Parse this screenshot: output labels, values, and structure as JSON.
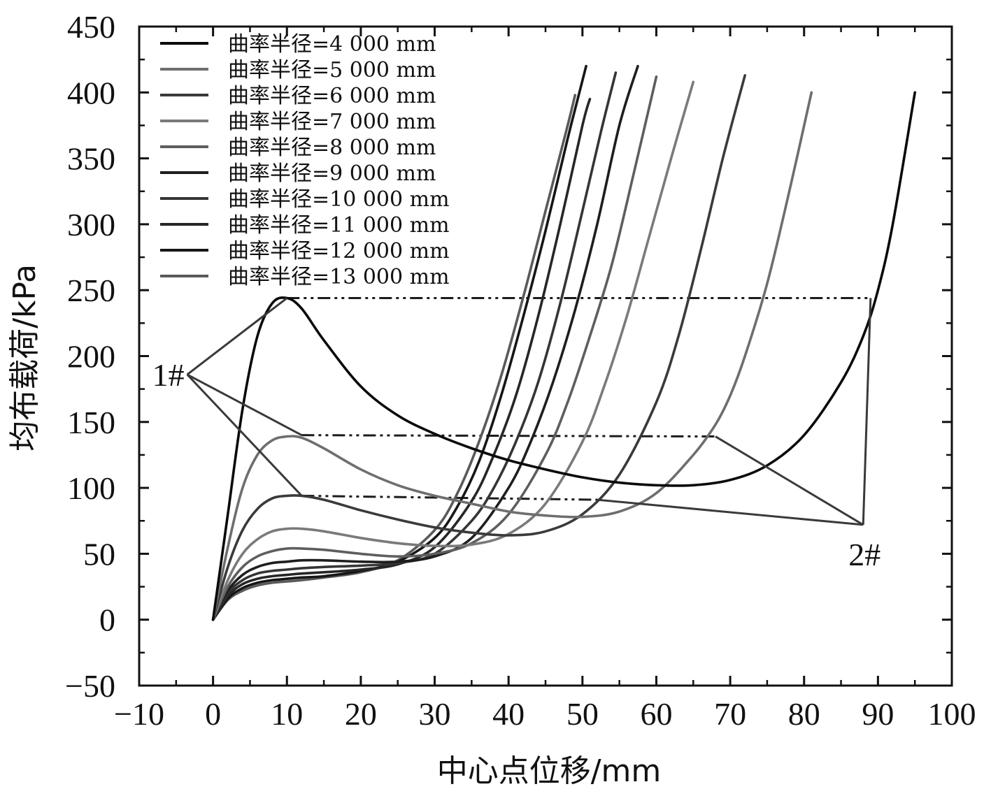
{
  "chart_data": {
    "type": "line",
    "title": "",
    "xlabel": "中心点位移/mm",
    "ylabel": "均布载荷/kPa",
    "xlim": [
      -10,
      100
    ],
    "ylim": [
      -50,
      450
    ],
    "xticks": [
      -10,
      0,
      10,
      20,
      30,
      40,
      50,
      60,
      70,
      80,
      90,
      100
    ],
    "yticks": [
      -50,
      0,
      50,
      100,
      150,
      200,
      250,
      300,
      350,
      400,
      450
    ],
    "xtick_labels": [
      "−10",
      "0",
      "10",
      "20",
      "30",
      "40",
      "50",
      "60",
      "70",
      "80",
      "90",
      "100"
    ],
    "ytick_labels": [
      "−50",
      "0",
      "50",
      "100",
      "150",
      "200",
      "250",
      "300",
      "350",
      "400",
      "450"
    ],
    "legend_position": "top-left",
    "series": [
      {
        "name": "曲率半径=4 000 mm",
        "color": "#0a0a0a",
        "x": [
          0,
          2,
          4,
          6,
          8,
          10,
          12,
          15,
          20,
          25,
          30,
          35,
          40,
          45,
          50,
          55,
          60,
          65,
          70,
          75,
          80,
          85,
          88,
          90,
          92,
          95
        ],
        "y": [
          0,
          80,
          160,
          215,
          240,
          244,
          236,
          212,
          177,
          155,
          141,
          130,
          121,
          114,
          108,
          104,
          102,
          102,
          106,
          117,
          140,
          180,
          215,
          250,
          300,
          400
        ]
      },
      {
        "name": "曲率半径=5 000 mm",
        "color": "#6e6e6e",
        "x": [
          0,
          2,
          4,
          6,
          8,
          10,
          12,
          15,
          20,
          25,
          30,
          35,
          40,
          45,
          50,
          55,
          60,
          65,
          68,
          70,
          72,
          75,
          78,
          81
        ],
        "y": [
          0,
          55,
          100,
          125,
          136,
          139,
          138,
          130,
          114,
          102,
          94,
          88,
          82,
          79,
          78,
          82,
          96,
          125,
          148,
          170,
          200,
          255,
          325,
          400
        ]
      },
      {
        "name": "曲率半径=6 000 mm",
        "color": "#3a3a3a",
        "x": [
          0,
          2,
          4,
          6,
          8,
          10,
          12,
          15,
          20,
          25,
          30,
          35,
          40,
          45,
          50,
          55,
          60,
          63,
          66,
          69,
          72
        ],
        "y": [
          0,
          40,
          68,
          84,
          92,
          94,
          94,
          91,
          83,
          76,
          70,
          66,
          64,
          67,
          80,
          110,
          165,
          215,
          280,
          350,
          413
        ]
      },
      {
        "name": "曲率半径=7 000 mm",
        "color": "#7a7a7a",
        "x": [
          0,
          2,
          4,
          6,
          8,
          10,
          12,
          15,
          20,
          25,
          30,
          35,
          40,
          45,
          50,
          53,
          56,
          59,
          62,
          65
        ],
        "y": [
          0,
          30,
          50,
          61,
          67,
          69,
          69,
          67,
          62,
          58,
          56,
          57,
          65,
          88,
          135,
          178,
          230,
          290,
          350,
          408
        ]
      },
      {
        "name": "曲率半径=8 000 mm",
        "color": "#5e5e5e",
        "x": [
          0,
          2,
          4,
          6,
          8,
          10,
          12,
          15,
          20,
          25,
          30,
          35,
          40,
          45,
          48,
          51,
          54,
          57,
          60
        ],
        "y": [
          0,
          25,
          40,
          48,
          52,
          54,
          54,
          53,
          50,
          48,
          50,
          58,
          80,
          125,
          165,
          215,
          270,
          340,
          412
        ]
      },
      {
        "name": "曲率半径=9 000 mm",
        "color": "#1e1e1e",
        "x": [
          0,
          2,
          4,
          6,
          8,
          10,
          12,
          15,
          20,
          25,
          30,
          35,
          40,
          43,
          46,
          49,
          52,
          55,
          57.5
        ],
        "y": [
          0,
          22,
          34,
          40,
          43,
          44,
          45,
          45,
          44,
          44,
          48,
          62,
          100,
          135,
          180,
          235,
          300,
          375,
          420
        ]
      },
      {
        "name": "曲率半径=10 000 mm",
        "color": "#353535",
        "x": [
          0,
          2,
          4,
          6,
          8,
          10,
          12,
          15,
          20,
          25,
          30,
          35,
          38,
          41,
          44,
          47,
          50,
          52.5,
          54.5
        ],
        "y": [
          0,
          20,
          30,
          35,
          37,
          38,
          39,
          40,
          41,
          43,
          50,
          75,
          100,
          135,
          180,
          240,
          310,
          370,
          415
        ]
      },
      {
        "name": "曲率半径=11 000 mm",
        "color": "#262626",
        "x": [
          0,
          2,
          4,
          6,
          8,
          10,
          12,
          15,
          20,
          25,
          30,
          35,
          38,
          41,
          44,
          47,
          50,
          51
        ],
        "y": [
          0,
          18,
          27,
          31,
          33,
          34,
          35,
          36,
          38,
          42,
          55,
          90,
          125,
          170,
          230,
          300,
          375,
          395
        ]
      },
      {
        "name": "曲率半径=12 000 mm",
        "color": "#161616",
        "x": [
          0,
          2,
          4,
          6,
          8,
          10,
          12,
          15,
          20,
          25,
          30,
          33,
          36,
          39,
          42,
          45,
          48,
          50.5
        ],
        "y": [
          0,
          16,
          24,
          28,
          30,
          31,
          32,
          33,
          37,
          44,
          62,
          85,
          120,
          170,
          230,
          295,
          365,
          420
        ]
      },
      {
        "name": "曲率半径=13 000 mm",
        "color": "#5a5a5a",
        "x": [
          0,
          2,
          4,
          6,
          8,
          10,
          12,
          15,
          20,
          25,
          30,
          33,
          36,
          39,
          42,
          45,
          48,
          49
        ],
        "y": [
          0,
          15,
          22,
          26,
          28,
          29,
          30,
          32,
          36,
          45,
          68,
          95,
          135,
          185,
          245,
          310,
          375,
          398
        ]
      }
    ],
    "reference_lines": [
      {
        "style": "dash-dot",
        "x": [
          10,
          89
        ],
        "y": [
          244,
          244
        ]
      },
      {
        "style": "dash-dot",
        "x": [
          12,
          68
        ],
        "y": [
          140,
          139
        ]
      },
      {
        "style": "dash-dot",
        "x": [
          12,
          52
        ],
        "y": [
          94,
          91
        ]
      }
    ],
    "annotations": [
      {
        "text": "1#",
        "x": -3.5,
        "y": 186,
        "pointers": [
          [
            10,
            244
          ],
          [
            12,
            140
          ],
          [
            12,
            94
          ]
        ]
      },
      {
        "text": "2#",
        "x": 88,
        "y": 72,
        "pointers": [
          [
            89,
            244
          ],
          [
            68,
            139
          ],
          [
            52,
            91
          ]
        ]
      }
    ]
  }
}
